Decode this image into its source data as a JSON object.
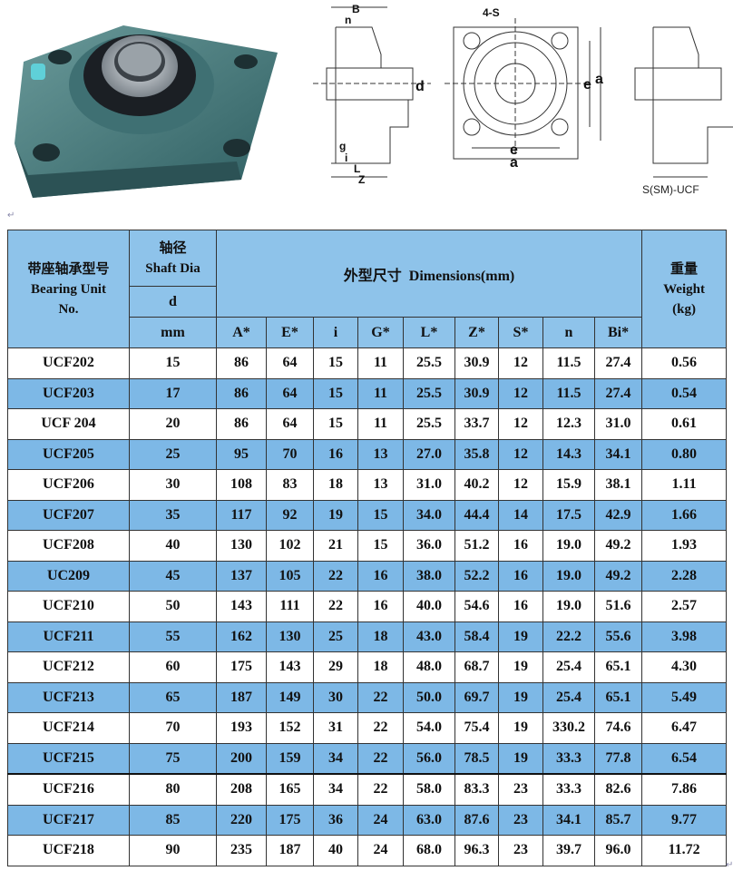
{
  "figure": {
    "drawing_labels": {
      "B": "B",
      "n": "n",
      "d": "d",
      "g": "g",
      "i": "i",
      "L": "L",
      "Z": "Z",
      "S": "4-S",
      "e": "e",
      "a": "a"
    },
    "caption": "S(SM)-UCF",
    "colors": {
      "header_bg": "#8ec3ea",
      "alt_row_bg": "#7db8e6",
      "housing": "#4a7d7d"
    }
  },
  "table": {
    "header": {
      "unit_no_cn": "带座轴承型号",
      "unit_no_en1": "Bearing Unit",
      "unit_no_en2": "No.",
      "shaft_cn": "轴径",
      "shaft_en": "Shaft Dia",
      "shaft_d": "d",
      "shaft_unit": "mm",
      "dims_cn": "外型尺寸",
      "dims_en": "Dimensions(mm)",
      "weight_cn": "重量",
      "weight_en": "Weight",
      "weight_unit": "(kg)",
      "dim_cols": [
        "A*",
        "E*",
        "i",
        "G*",
        "L*",
        "Z*",
        "S*",
        "n",
        "Bi*"
      ]
    },
    "rows": [
      [
        "UCF202",
        "15",
        "86",
        "64",
        "15",
        "11",
        "25.5",
        "30.9",
        "12",
        "11.5",
        "27.4",
        "0.56"
      ],
      [
        "UCF203",
        "17",
        "86",
        "64",
        "15",
        "11",
        "25.5",
        "30.9",
        "12",
        "11.5",
        "27.4",
        "0.54"
      ],
      [
        "UCF 204",
        "20",
        "86",
        "64",
        "15",
        "11",
        "25.5",
        "33.7",
        "12",
        "12.3",
        "31.0",
        "0.61"
      ],
      [
        "UCF205",
        "25",
        "95",
        "70",
        "16",
        "13",
        "27.0",
        "35.8",
        "12",
        "14.3",
        "34.1",
        "0.80"
      ],
      [
        "UCF206",
        "30",
        "108",
        "83",
        "18",
        "13",
        "31.0",
        "40.2",
        "12",
        "15.9",
        "38.1",
        "1.11"
      ],
      [
        "UCF207",
        "35",
        "117",
        "92",
        "19",
        "15",
        "34.0",
        "44.4",
        "14",
        "17.5",
        "42.9",
        "1.66"
      ],
      [
        "UCF208",
        "40",
        "130",
        "102",
        "21",
        "15",
        "36.0",
        "51.2",
        "16",
        "19.0",
        "49.2",
        "1.93"
      ],
      [
        "UC209",
        "45",
        "137",
        "105",
        "22",
        "16",
        "38.0",
        "52.2",
        "16",
        "19.0",
        "49.2",
        "2.28"
      ],
      [
        "UCF210",
        "50",
        "143",
        "111",
        "22",
        "16",
        "40.0",
        "54.6",
        "16",
        "19.0",
        "51.6",
        "2.57"
      ],
      [
        "UCF211",
        "55",
        "162",
        "130",
        "25",
        "18",
        "43.0",
        "58.4",
        "19",
        "22.2",
        "55.6",
        "3.98"
      ],
      [
        "UCF212",
        "60",
        "175",
        "143",
        "29",
        "18",
        "48.0",
        "68.7",
        "19",
        "25.4",
        "65.1",
        "4.30"
      ],
      [
        "UCF213",
        "65",
        "187",
        "149",
        "30",
        "22",
        "50.0",
        "69.7",
        "19",
        "25.4",
        "65.1",
        "5.49"
      ],
      [
        "UCF214",
        "70",
        "193",
        "152",
        "31",
        "22",
        "54.0",
        "75.4",
        "19",
        "330.2",
        "74.6",
        "6.47"
      ],
      [
        "UCF215",
        "75",
        "200",
        "159",
        "34",
        "22",
        "56.0",
        "78.5",
        "19",
        "33.3",
        "77.8",
        "6.54"
      ],
      [
        "UCF216",
        "80",
        "208",
        "165",
        "34",
        "22",
        "58.0",
        "83.3",
        "23",
        "33.3",
        "82.6",
        "7.86"
      ],
      [
        "UCF217",
        "85",
        "220",
        "175",
        "36",
        "24",
        "63.0",
        "87.6",
        "23",
        "34.1",
        "85.7",
        "9.77"
      ],
      [
        "UCF218",
        "90",
        "235",
        "187",
        "40",
        "24",
        "68.0",
        "96.3",
        "23",
        "39.7",
        "96.0",
        "11.72"
      ]
    ]
  }
}
